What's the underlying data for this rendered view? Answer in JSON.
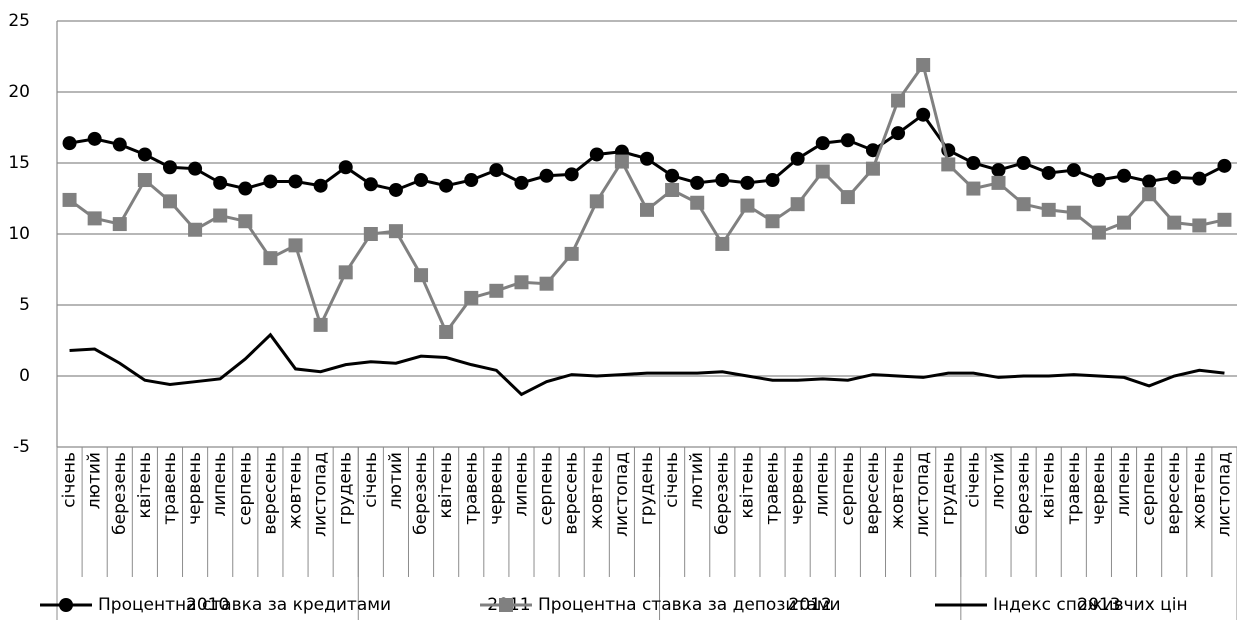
{
  "chart_data": {
    "type": "line",
    "categories": [
      "січень",
      "лютий",
      "березень",
      "квітень",
      "травень",
      "червень",
      "липень",
      "серпень",
      "вересень",
      "жовтень",
      "листопад",
      "грудень",
      "січень",
      "лютий",
      "березень",
      "квітень",
      "травень",
      "червень",
      "липень",
      "серпень",
      "вересень",
      "жовтень",
      "листопад",
      "грудень",
      "січень",
      "лютий",
      "березень",
      "квітень",
      "травень",
      "червень",
      "липень",
      "серпень",
      "вересень",
      "жовтень",
      "листопад",
      "грудень",
      "січень",
      "лютий",
      "березень",
      "квітень",
      "травень",
      "червень",
      "липень",
      "серпень",
      "вересень",
      "жовтень",
      "листопад"
    ],
    "groups": [
      {
        "label": "2010",
        "size": 12
      },
      {
        "label": "2011",
        "size": 12
      },
      {
        "label": "2012",
        "size": 12
      },
      {
        "label": "2013",
        "size": 11
      }
    ],
    "series": [
      {
        "name": "Процентна ставка за кредитами",
        "color": "#000000",
        "marker": "circle",
        "values": [
          16.4,
          16.7,
          16.3,
          15.6,
          14.7,
          14.6,
          13.6,
          13.2,
          13.7,
          13.7,
          13.4,
          14.7,
          13.5,
          13.1,
          13.8,
          13.4,
          13.8,
          14.5,
          13.6,
          14.1,
          14.2,
          15.6,
          15.8,
          15.3,
          14.1,
          13.6,
          13.8,
          13.6,
          13.8,
          15.3,
          16.4,
          16.6,
          15.9,
          17.1,
          18.4,
          15.9,
          15.0,
          14.5,
          15.0,
          14.3,
          14.5,
          13.8,
          14.1,
          13.7,
          14.0,
          13.9,
          14.8
        ]
      },
      {
        "name": "Процентна ставка за депозитами",
        "color": "#808080",
        "marker": "square",
        "values": [
          12.4,
          11.1,
          10.7,
          13.8,
          12.3,
          10.3,
          11.3,
          10.9,
          8.3,
          9.2,
          3.6,
          7.3,
          10.0,
          10.2,
          7.1,
          3.1,
          5.5,
          6.0,
          6.6,
          6.5,
          8.6,
          12.3,
          15.1,
          11.7,
          13.1,
          12.2,
          9.3,
          12.0,
          10.9,
          12.1,
          14.4,
          12.6,
          14.6,
          19.4,
          21.9,
          14.9,
          13.2,
          13.6,
          12.1,
          11.7,
          11.5,
          10.1,
          10.8,
          12.8,
          10.8,
          10.6,
          11.0
        ]
      },
      {
        "name": "Індекс споживчих цін",
        "color": "#000000",
        "marker": "none",
        "values": [
          1.8,
          1.9,
          0.9,
          -0.3,
          -0.6,
          -0.4,
          -0.2,
          1.2,
          2.9,
          0.5,
          0.3,
          0.8,
          1.0,
          0.9,
          1.4,
          1.3,
          0.8,
          0.4,
          -1.3,
          -0.4,
          0.1,
          0.0,
          0.1,
          0.2,
          0.2,
          0.2,
          0.3,
          0.0,
          -0.3,
          -0.3,
          -0.2,
          -0.3,
          0.1,
          0.0,
          -0.1,
          0.2,
          0.2,
          -0.1,
          0.0,
          0.0,
          0.1,
          0.0,
          -0.1,
          -0.7,
          0.0,
          0.4,
          0.2
        ]
      }
    ],
    "ylim": [
      -5,
      25
    ],
    "yticks": [
      -5,
      0,
      5,
      10,
      15,
      20,
      25
    ],
    "grid": true,
    "legend": "bottom"
  }
}
